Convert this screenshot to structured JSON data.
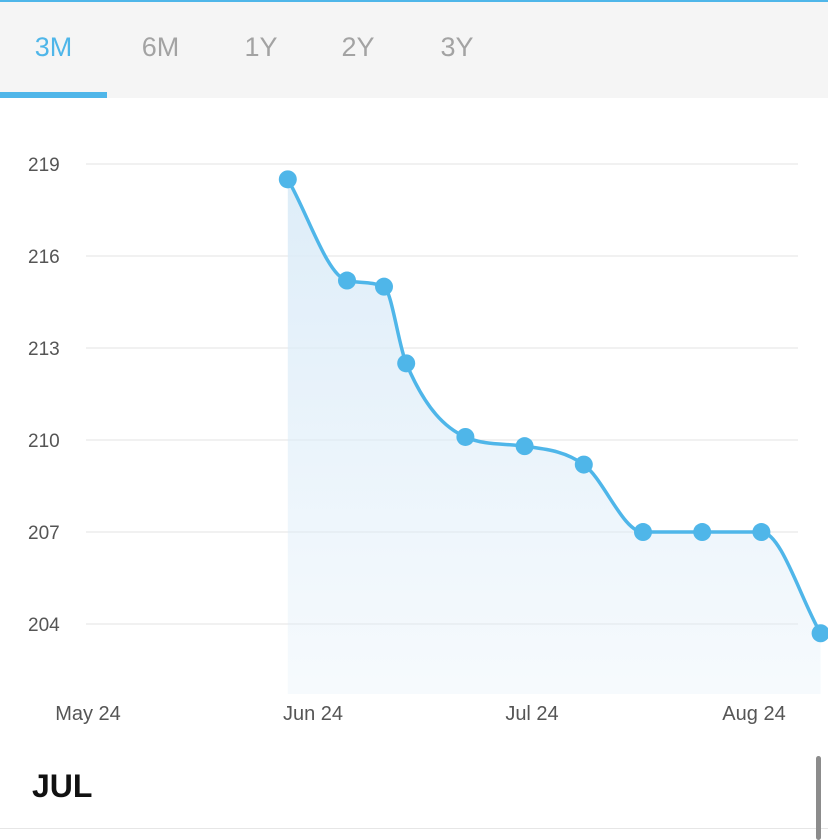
{
  "tabs": [
    {
      "label": "3M",
      "active": true
    },
    {
      "label": "6M",
      "active": false
    },
    {
      "label": "1Y",
      "active": false
    },
    {
      "label": "2Y",
      "active": false
    },
    {
      "label": "3Y",
      "active": false
    }
  ],
  "section": {
    "title": "JUL"
  },
  "colors": {
    "accent": "#4fb6e9",
    "fill_top": "#dcecf8",
    "grid": "#e3e3e3",
    "label": "#555555"
  },
  "chart_data": {
    "type": "area",
    "title": "",
    "xlabel": "",
    "ylabel": "",
    "x_ticks": [
      "May 24",
      "Jun 24",
      "Jul 24",
      "Aug 24"
    ],
    "y_ticks": [
      204,
      207,
      210,
      213,
      216,
      219
    ],
    "ylim": [
      201.7,
      220.6
    ],
    "xlim_days": [
      0,
      90
    ],
    "grid": true,
    "series": [
      {
        "name": "",
        "points": [
          {
            "day": 27,
            "value": 218.5
          },
          {
            "day": 35,
            "value": 215.2
          },
          {
            "day": 40,
            "value": 215.0
          },
          {
            "day": 43,
            "value": 212.5
          },
          {
            "day": 51,
            "value": 210.1
          },
          {
            "day": 59,
            "value": 209.8
          },
          {
            "day": 67,
            "value": 209.2
          },
          {
            "day": 75,
            "value": 207.0
          },
          {
            "day": 83,
            "value": 207.0
          },
          {
            "day": 91,
            "value": 207.0
          },
          {
            "day": 99,
            "value": 203.7
          }
        ]
      }
    ]
  }
}
